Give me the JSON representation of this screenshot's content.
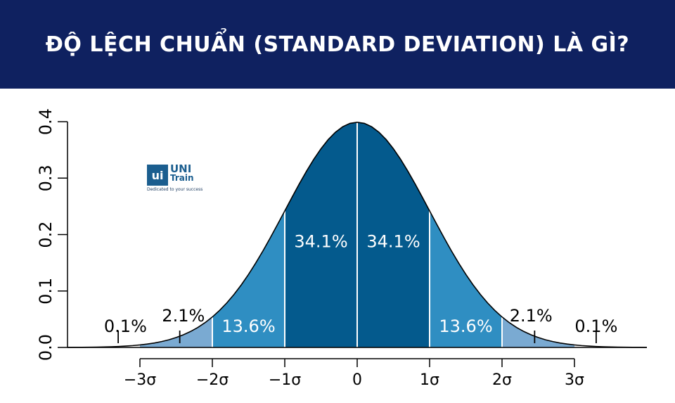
{
  "banner": {
    "title": "ĐỘ LỆCH CHUẨN (STANDARD DEVIATION) LÀ GÌ?"
  },
  "logo": {
    "mark": "ui",
    "line1": "UNI",
    "line2": "Train",
    "slogan": "Dedicated to your success"
  },
  "chart_data": {
    "type": "area",
    "title": "",
    "xlabel": "",
    "ylabel": "",
    "xlim": [
      -4,
      4
    ],
    "ylim": [
      0,
      0.4
    ],
    "yticks": [
      0.0,
      0.1,
      0.2,
      0.3,
      0.4
    ],
    "ytick_labels": [
      "0.0",
      "0.1",
      "0.2",
      "0.3",
      "0.4"
    ],
    "xticks": [
      -3,
      -2,
      -1,
      0,
      1,
      2,
      3
    ],
    "xtick_labels": [
      "−3σ",
      "−2σ",
      "−1σ",
      "0",
      "1σ",
      "2σ",
      "3σ"
    ],
    "grid": false,
    "curve": "normal pdf, mean 0, sd 1",
    "bands": [
      {
        "from": -3,
        "to": -2,
        "color": "#7aaad2"
      },
      {
        "from": -2,
        "to": -1,
        "color": "#2f8ec2"
      },
      {
        "from": -1,
        "to": 0,
        "color": "#045a8d"
      },
      {
        "from": 0,
        "to": 1,
        "color": "#045a8d"
      },
      {
        "from": 1,
        "to": 2,
        "color": "#2f8ec2"
      },
      {
        "from": 2,
        "to": 3,
        "color": "#7aaad2"
      }
    ],
    "band_labels": [
      {
        "text": "34.1%",
        "x": -0.5,
        "y": 0.186,
        "color": "#ffffff"
      },
      {
        "text": "34.1%",
        "x": 0.5,
        "y": 0.186,
        "color": "#ffffff"
      },
      {
        "text": "13.6%",
        "x": -1.5,
        "y": 0.036,
        "color": "#ffffff"
      },
      {
        "text": "13.6%",
        "x": 1.5,
        "y": 0.036,
        "color": "#ffffff"
      }
    ],
    "outer_labels": [
      {
        "text": "2.1%",
        "x": -2.4,
        "y": 0.055,
        "marker_x": -2.45
      },
      {
        "text": "0.1%",
        "x": -3.2,
        "y": 0.036,
        "marker_x": -3.3
      },
      {
        "text": "2.1%",
        "x": 2.4,
        "y": 0.055,
        "marker_x": 2.45
      },
      {
        "text": "0.1%",
        "x": 3.3,
        "y": 0.036,
        "marker_x": 3.3
      }
    ]
  }
}
